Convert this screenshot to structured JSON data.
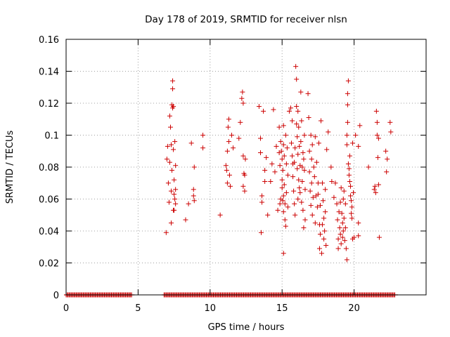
{
  "chart_data": {
    "type": "scatter",
    "title": "Day 178 of 2019, SRMTID for receiver nlsn",
    "xlabel": "GPS time / hours",
    "ylabel": "SRMTID / TECUs",
    "xlim": [
      0,
      25
    ],
    "ylim": [
      0,
      0.16
    ],
    "x_ticks": [
      0,
      5,
      10,
      15,
      20
    ],
    "x_tick_labels": [
      "0",
      "5",
      "10",
      "15",
      "20"
    ],
    "y_ticks": [
      0,
      0.02,
      0.04,
      0.06,
      0.08,
      0.1,
      0.12,
      0.14,
      0.16
    ],
    "y_tick_labels": [
      "0",
      "0.02",
      "0.04",
      "0.06",
      "0.08",
      "0.1",
      "0.12",
      "0.14",
      "0.16"
    ],
    "grid": true,
    "marker": "+",
    "color": "#cc0000",
    "zero_bands": [
      [
        0,
        4.6
      ],
      [
        6.8,
        22.9
      ]
    ],
    "series": [
      {
        "points": [
          [
            6.95,
            0.039
          ],
          [
            7.0,
            0.085
          ],
          [
            7.05,
            0.093
          ],
          [
            7.1,
            0.07
          ],
          [
            7.15,
            0.058
          ],
          [
            7.2,
            0.083
          ],
          [
            7.2,
            0.112
          ],
          [
            7.25,
            0.105
          ],
          [
            7.3,
            0.094
          ],
          [
            7.3,
            0.065
          ],
          [
            7.35,
            0.078
          ],
          [
            7.35,
            0.119
          ],
          [
            7.4,
            0.134
          ],
          [
            7.4,
            0.129
          ],
          [
            7.4,
            0.117
          ],
          [
            7.45,
            0.118
          ],
          [
            7.45,
            0.091
          ],
          [
            7.5,
            0.072
          ],
          [
            7.5,
            0.063
          ],
          [
            7.5,
            0.053
          ],
          [
            7.55,
            0.06
          ],
          [
            7.55,
            0.096
          ],
          [
            7.6,
            0.081
          ],
          [
            7.6,
            0.066
          ],
          [
            7.6,
            0.057
          ],
          [
            7.3,
            0.045
          ],
          [
            7.45,
            0.053
          ],
          [
            8.3,
            0.047
          ],
          [
            8.5,
            0.057
          ],
          [
            8.7,
            0.095
          ],
          [
            8.85,
            0.066
          ],
          [
            8.85,
            0.062
          ],
          [
            8.9,
            0.08
          ],
          [
            8.9,
            0.059
          ],
          [
            9.5,
            0.1
          ],
          [
            9.5,
            0.092
          ],
          [
            10.7,
            0.05
          ],
          [
            11.1,
            0.081
          ],
          [
            11.15,
            0.078
          ],
          [
            11.2,
            0.09
          ],
          [
            11.2,
            0.07
          ],
          [
            11.25,
            0.105
          ],
          [
            11.3,
            0.11
          ],
          [
            11.3,
            0.096
          ],
          [
            11.35,
            0.075
          ],
          [
            11.4,
            0.068
          ],
          [
            11.5,
            0.1
          ],
          [
            11.6,
            0.092
          ],
          [
            12.0,
            0.098
          ],
          [
            12.1,
            0.108
          ],
          [
            12.2,
            0.123
          ],
          [
            12.25,
            0.127
          ],
          [
            12.3,
            0.087
          ],
          [
            12.3,
            0.068
          ],
          [
            12.35,
            0.076
          ],
          [
            12.4,
            0.065
          ],
          [
            12.4,
            0.075
          ],
          [
            12.45,
            0.085
          ],
          [
            12.3,
            0.12
          ],
          [
            13.4,
            0.118
          ],
          [
            13.5,
            0.098
          ],
          [
            13.5,
            0.089
          ],
          [
            13.6,
            0.062
          ],
          [
            13.6,
            0.058
          ],
          [
            13.55,
            0.039
          ],
          [
            13.7,
            0.115
          ],
          [
            13.8,
            0.078
          ],
          [
            13.8,
            0.071
          ],
          [
            13.9,
            0.086
          ],
          [
            14.0,
            0.05
          ],
          [
            14.2,
            0.071
          ],
          [
            14.3,
            0.082
          ],
          [
            14.4,
            0.116
          ],
          [
            14.5,
            0.077
          ],
          [
            14.6,
            0.093
          ],
          [
            14.7,
            0.053
          ],
          [
            14.8,
            0.105
          ],
          [
            14.8,
            0.089
          ],
          [
            14.85,
            0.081
          ],
          [
            14.85,
            0.057
          ],
          [
            14.9,
            0.096
          ],
          [
            14.9,
            0.06
          ],
          [
            14.95,
            0.09
          ],
          [
            15.0,
            0.085
          ],
          [
            15.0,
            0.072
          ],
          [
            15.0,
            0.067
          ],
          [
            15.05,
            0.078
          ],
          [
            15.05,
            0.059
          ],
          [
            15.1,
            0.106
          ],
          [
            15.1,
            0.094
          ],
          [
            15.1,
            0.062
          ],
          [
            15.1,
            0.052
          ],
          [
            15.1,
            0.026
          ],
          [
            15.15,
            0.087
          ],
          [
            15.15,
            0.069
          ],
          [
            15.2,
            0.057
          ],
          [
            15.2,
            0.047
          ],
          [
            15.25,
            0.1
          ],
          [
            15.25,
            0.043
          ],
          [
            15.3,
            0.082
          ],
          [
            15.3,
            0.064
          ],
          [
            15.35,
            0.092
          ],
          [
            15.4,
            0.075
          ],
          [
            15.4,
            0.055
          ],
          [
            15.5,
            0.115
          ],
          [
            15.6,
            0.117
          ],
          [
            15.65,
            0.095
          ],
          [
            15.7,
            0.109
          ],
          [
            15.7,
            0.087
          ],
          [
            15.75,
            0.082
          ],
          [
            15.75,
            0.074
          ],
          [
            15.8,
            0.065
          ],
          [
            15.85,
            0.083
          ],
          [
            15.85,
            0.057
          ],
          [
            15.9,
            0.092
          ],
          [
            15.9,
            0.05
          ],
          [
            15.95,
            0.143
          ],
          [
            16.0,
            0.135
          ],
          [
            16.0,
            0.118
          ],
          [
            16.0,
            0.107
          ],
          [
            16.05,
            0.099
          ],
          [
            16.05,
            0.079
          ],
          [
            16.1,
            0.115
          ],
          [
            16.1,
            0.088
          ],
          [
            16.1,
            0.06
          ],
          [
            16.15,
            0.072
          ],
          [
            16.15,
            0.105
          ],
          [
            16.2,
            0.093
          ],
          [
            16.2,
            0.067
          ],
          [
            16.25,
            0.081
          ],
          [
            16.25,
            0.064
          ],
          [
            16.3,
            0.127
          ],
          [
            16.3,
            0.096
          ],
          [
            16.35,
            0.109
          ],
          [
            16.35,
            0.058
          ],
          [
            16.4,
            0.08
          ],
          [
            16.4,
            0.071
          ],
          [
            16.45,
            0.089
          ],
          [
            16.45,
            0.053
          ],
          [
            16.5,
            0.085
          ],
          [
            16.5,
            0.042
          ],
          [
            16.55,
            0.1
          ],
          [
            16.55,
            0.078
          ],
          [
            16.6,
            0.066
          ],
          [
            16.6,
            0.047
          ],
          [
            16.8,
            0.126
          ],
          [
            16.85,
            0.111
          ],
          [
            16.9,
            0.09
          ],
          [
            16.9,
            0.077
          ],
          [
            16.95,
            0.065
          ],
          [
            17.0,
            0.1
          ],
          [
            17.0,
            0.056
          ],
          [
            17.05,
            0.085
          ],
          [
            17.05,
            0.07
          ],
          [
            17.1,
            0.094
          ],
          [
            17.1,
            0.05
          ],
          [
            17.15,
            0.061
          ],
          [
            17.2,
            0.08
          ],
          [
            17.25,
            0.074
          ],
          [
            17.3,
            0.099
          ],
          [
            17.3,
            0.045
          ],
          [
            17.35,
            0.062
          ],
          [
            17.4,
            0.083
          ],
          [
            17.45,
            0.055
          ],
          [
            17.5,
            0.07
          ],
          [
            17.5,
            0.063
          ],
          [
            17.55,
            0.095
          ],
          [
            17.6,
            0.044
          ],
          [
            17.6,
            0.029
          ],
          [
            17.65,
            0.056
          ],
          [
            17.65,
            0.038
          ],
          [
            17.7,
            0.109
          ],
          [
            17.75,
            0.026
          ],
          [
            17.8,
            0.044
          ],
          [
            17.8,
            0.07
          ],
          [
            17.85,
            0.059
          ],
          [
            17.9,
            0.048
          ],
          [
            17.9,
            0.035
          ],
          [
            17.95,
            0.04
          ],
          [
            18.0,
            0.066
          ],
          [
            18.0,
            0.052
          ],
          [
            18.05,
            0.031
          ],
          [
            18.1,
            0.091
          ],
          [
            18.2,
            0.102
          ],
          [
            18.4,
            0.08
          ],
          [
            18.45,
            0.071
          ],
          [
            18.6,
            0.061
          ],
          [
            18.7,
            0.07
          ],
          [
            18.8,
            0.057
          ],
          [
            18.85,
            0.047
          ],
          [
            18.9,
            0.035
          ],
          [
            18.9,
            0.029
          ],
          [
            18.95,
            0.052
          ],
          [
            19.0,
            0.042
          ],
          [
            19.05,
            0.058
          ],
          [
            19.05,
            0.038
          ],
          [
            19.1,
            0.067
          ],
          [
            19.1,
            0.032
          ],
          [
            19.15,
            0.051
          ],
          [
            19.2,
            0.045
          ],
          [
            19.2,
            0.036
          ],
          [
            19.25,
            0.06
          ],
          [
            19.25,
            0.04
          ],
          [
            19.3,
            0.065
          ],
          [
            19.3,
            0.048
          ],
          [
            19.35,
            0.034
          ],
          [
            19.4,
            0.057
          ],
          [
            19.4,
            0.042
          ],
          [
            19.45,
            0.029
          ],
          [
            19.5,
            0.022
          ],
          [
            19.5,
            0.094
          ],
          [
            19.5,
            0.1
          ],
          [
            19.55,
            0.108
          ],
          [
            19.55,
            0.119
          ],
          [
            19.55,
            0.126
          ],
          [
            19.6,
            0.134
          ],
          [
            19.6,
            0.082
          ],
          [
            19.65,
            0.079
          ],
          [
            19.65,
            0.075
          ],
          [
            19.7,
            0.071
          ],
          [
            19.7,
            0.087
          ],
          [
            19.75,
            0.068
          ],
          [
            19.75,
            0.062
          ],
          [
            19.8,
            0.059
          ],
          [
            19.8,
            0.051
          ],
          [
            19.85,
            0.048
          ],
          [
            19.85,
            0.055
          ],
          [
            19.9,
            0.035
          ],
          [
            19.9,
            0.095
          ],
          [
            19.95,
            0.064
          ],
          [
            20.0,
            0.036
          ],
          [
            20.1,
            0.1
          ],
          [
            20.3,
            0.045
          ],
          [
            20.3,
            0.037
          ],
          [
            20.3,
            0.093
          ],
          [
            20.4,
            0.106
          ],
          [
            21.0,
            0.08
          ],
          [
            21.4,
            0.066
          ],
          [
            21.45,
            0.068
          ],
          [
            21.5,
            0.064
          ],
          [
            21.55,
            0.115
          ],
          [
            21.6,
            0.108
          ],
          [
            21.6,
            0.1
          ],
          [
            21.65,
            0.086
          ],
          [
            21.7,
            0.098
          ],
          [
            21.7,
            0.069
          ],
          [
            21.75,
            0.036
          ],
          [
            22.2,
            0.09
          ],
          [
            22.25,
            0.077
          ],
          [
            22.3,
            0.085
          ],
          [
            22.5,
            0.108
          ],
          [
            22.55,
            0.102
          ]
        ]
      }
    ]
  }
}
